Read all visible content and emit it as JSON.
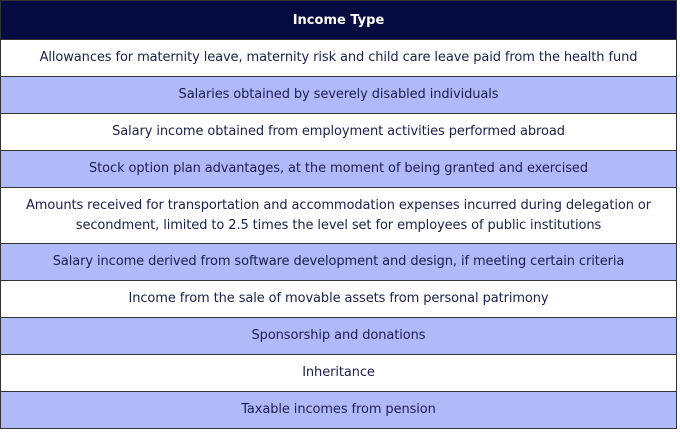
{
  "table": {
    "header": "Income Type",
    "rows": [
      "Allowances for maternity leave, maternity risk and child care leave paid from the health fund",
      "Salaries obtained by severely disabled individuals",
      "Salary income obtained from employment activities performed abroad",
      "Stock option plan advantages, at the moment of being granted and exercised",
      "Amounts received for transportation and accommodation expenses incurred during delegation or secondment, limited to 2.5 times the level set for employees of public institutions",
      "Salary income derived from software development and design, if meeting certain criteria",
      "Income from the sale of movable assets from personal patrimony",
      "Sponsorship and donations",
      "Inheritance",
      "Taxable incomes from pension"
    ]
  },
  "colors": {
    "header_bg": "#050a40",
    "alt_row_bg": "#b0b9fa",
    "text": "#1b1f4b"
  }
}
